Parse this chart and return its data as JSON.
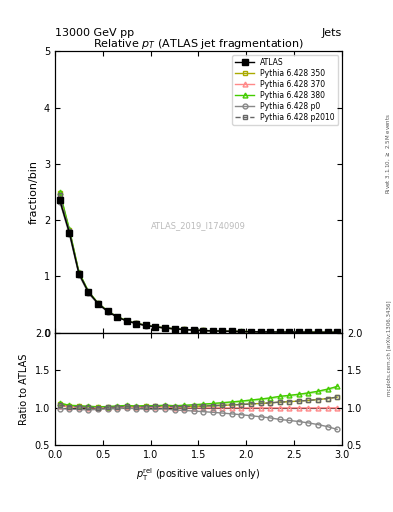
{
  "title": "Relative $p_T$ (ATLAS jet fragmentation)",
  "header_left": "13000 GeV pp",
  "header_right": "Jets",
  "ylabel_main": "fraction/bin",
  "ylabel_ratio": "Ratio to ATLAS",
  "xlabel": "$p_{\\mathrm{T}}^{\\mathrm{rel}}$ (positive values only)",
  "watermark": "ATLAS_2019_I1740909",
  "right_label_top": "Rivet 3.1.10, $\\geq$ 2.5M events",
  "right_label_bottom": "mcplots.cern.ch [arXiv:1306.3436]",
  "x": [
    0.05,
    0.15,
    0.25,
    0.35,
    0.45,
    0.55,
    0.65,
    0.75,
    0.85,
    0.95,
    1.05,
    1.15,
    1.25,
    1.35,
    1.45,
    1.55,
    1.65,
    1.75,
    1.85,
    1.95,
    2.05,
    2.15,
    2.25,
    2.35,
    2.45,
    2.55,
    2.65,
    2.75,
    2.85,
    2.95
  ],
  "atlas_y": [
    2.35,
    1.78,
    1.05,
    0.72,
    0.52,
    0.38,
    0.28,
    0.21,
    0.165,
    0.13,
    0.105,
    0.085,
    0.07,
    0.058,
    0.048,
    0.04,
    0.034,
    0.029,
    0.025,
    0.022,
    0.019,
    0.017,
    0.015,
    0.013,
    0.012,
    0.011,
    0.01,
    0.009,
    0.008,
    0.007
  ],
  "py350_y": [
    2.48,
    1.83,
    1.07,
    0.73,
    0.525,
    0.385,
    0.285,
    0.215,
    0.168,
    0.133,
    0.107,
    0.087,
    0.071,
    0.059,
    0.049,
    0.041,
    0.035,
    0.03,
    0.026,
    0.023,
    0.02,
    0.018,
    0.016,
    0.014,
    0.013,
    0.012,
    0.011,
    0.01,
    0.009,
    0.008
  ],
  "py370_y": [
    2.42,
    1.8,
    1.06,
    0.72,
    0.52,
    0.382,
    0.282,
    0.213,
    0.166,
    0.131,
    0.106,
    0.086,
    0.07,
    0.058,
    0.048,
    0.04,
    0.034,
    0.029,
    0.025,
    0.022,
    0.019,
    0.017,
    0.015,
    0.013,
    0.012,
    0.011,
    0.01,
    0.009,
    0.008,
    0.007
  ],
  "py380_y": [
    2.5,
    1.84,
    1.08,
    0.735,
    0.528,
    0.387,
    0.287,
    0.217,
    0.169,
    0.134,
    0.108,
    0.088,
    0.072,
    0.06,
    0.05,
    0.042,
    0.036,
    0.031,
    0.027,
    0.024,
    0.021,
    0.019,
    0.017,
    0.015,
    0.014,
    0.013,
    0.012,
    0.011,
    0.01,
    0.009
  ],
  "pyp0_y": [
    2.33,
    1.75,
    1.03,
    0.7,
    0.51,
    0.375,
    0.277,
    0.21,
    0.163,
    0.128,
    0.103,
    0.084,
    0.068,
    0.056,
    0.046,
    0.038,
    0.032,
    0.027,
    0.023,
    0.02,
    0.017,
    0.015,
    0.013,
    0.011,
    0.01,
    0.009,
    0.008,
    0.007,
    0.006,
    0.005
  ],
  "pyp2010_y": [
    2.44,
    1.81,
    1.065,
    0.725,
    0.522,
    0.383,
    0.283,
    0.214,
    0.167,
    0.132,
    0.107,
    0.087,
    0.071,
    0.059,
    0.049,
    0.041,
    0.035,
    0.03,
    0.026,
    0.023,
    0.02,
    0.018,
    0.016,
    0.014,
    0.013,
    0.012,
    0.011,
    0.01,
    0.009,
    0.008
  ],
  "py350_ratio": [
    1.055,
    1.028,
    1.019,
    1.014,
    1.01,
    1.013,
    1.018,
    1.024,
    1.018,
    1.023,
    1.019,
    1.024,
    1.014,
    1.017,
    1.021,
    1.025,
    1.029,
    1.034,
    1.04,
    1.045,
    1.053,
    1.059,
    1.067,
    1.077,
    1.083,
    1.091,
    1.1,
    1.111,
    1.125,
    1.143
  ],
  "py370_ratio": [
    1.03,
    1.011,
    1.01,
    1.0,
    1.0,
    1.005,
    1.007,
    1.014,
    1.006,
    1.008,
    1.01,
    1.012,
    1.0,
    1.0,
    1.0,
    1.0,
    1.0,
    1.0,
    1.0,
    1.0,
    1.0,
    1.0,
    1.0,
    1.0,
    1.0,
    1.0,
    1.0,
    1.0,
    1.0,
    1.0
  ],
  "py380_ratio": [
    1.064,
    1.034,
    1.029,
    1.021,
    1.015,
    1.018,
    1.025,
    1.033,
    1.024,
    1.031,
    1.029,
    1.035,
    1.029,
    1.034,
    1.042,
    1.05,
    1.059,
    1.069,
    1.08,
    1.091,
    1.105,
    1.118,
    1.133,
    1.154,
    1.167,
    1.182,
    1.2,
    1.222,
    1.25,
    1.286
  ],
  "pyp0_ratio": [
    0.991,
    0.983,
    0.981,
    0.972,
    0.981,
    0.987,
    0.989,
    1.0,
    0.988,
    0.985,
    0.981,
    0.988,
    0.971,
    0.966,
    0.958,
    0.95,
    0.941,
    0.931,
    0.92,
    0.909,
    0.895,
    0.882,
    0.867,
    0.846,
    0.833,
    0.818,
    0.8,
    0.778,
    0.75,
    0.714
  ],
  "pyp2010_ratio": [
    1.038,
    1.017,
    1.014,
    1.007,
    1.004,
    1.008,
    1.011,
    1.019,
    1.012,
    1.015,
    1.019,
    1.024,
    1.014,
    1.017,
    1.021,
    1.025,
    1.029,
    1.034,
    1.04,
    1.045,
    1.053,
    1.059,
    1.067,
    1.077,
    1.083,
    1.091,
    1.1,
    1.111,
    1.125,
    1.143
  ],
  "color_atlas": "#000000",
  "color_py350": "#aaaa00",
  "color_py370": "#ff8888",
  "color_py380": "#44cc00",
  "color_pyp0": "#888888",
  "color_pyp2010": "#666666",
  "xlim": [
    0,
    3
  ],
  "ylim_main": [
    0,
    5
  ],
  "ylim_ratio": [
    0.5,
    2.0
  ],
  "yticks_main": [
    0,
    1,
    2,
    3,
    4,
    5
  ],
  "yticks_ratio": [
    0.5,
    1.0,
    1.5,
    2.0
  ]
}
